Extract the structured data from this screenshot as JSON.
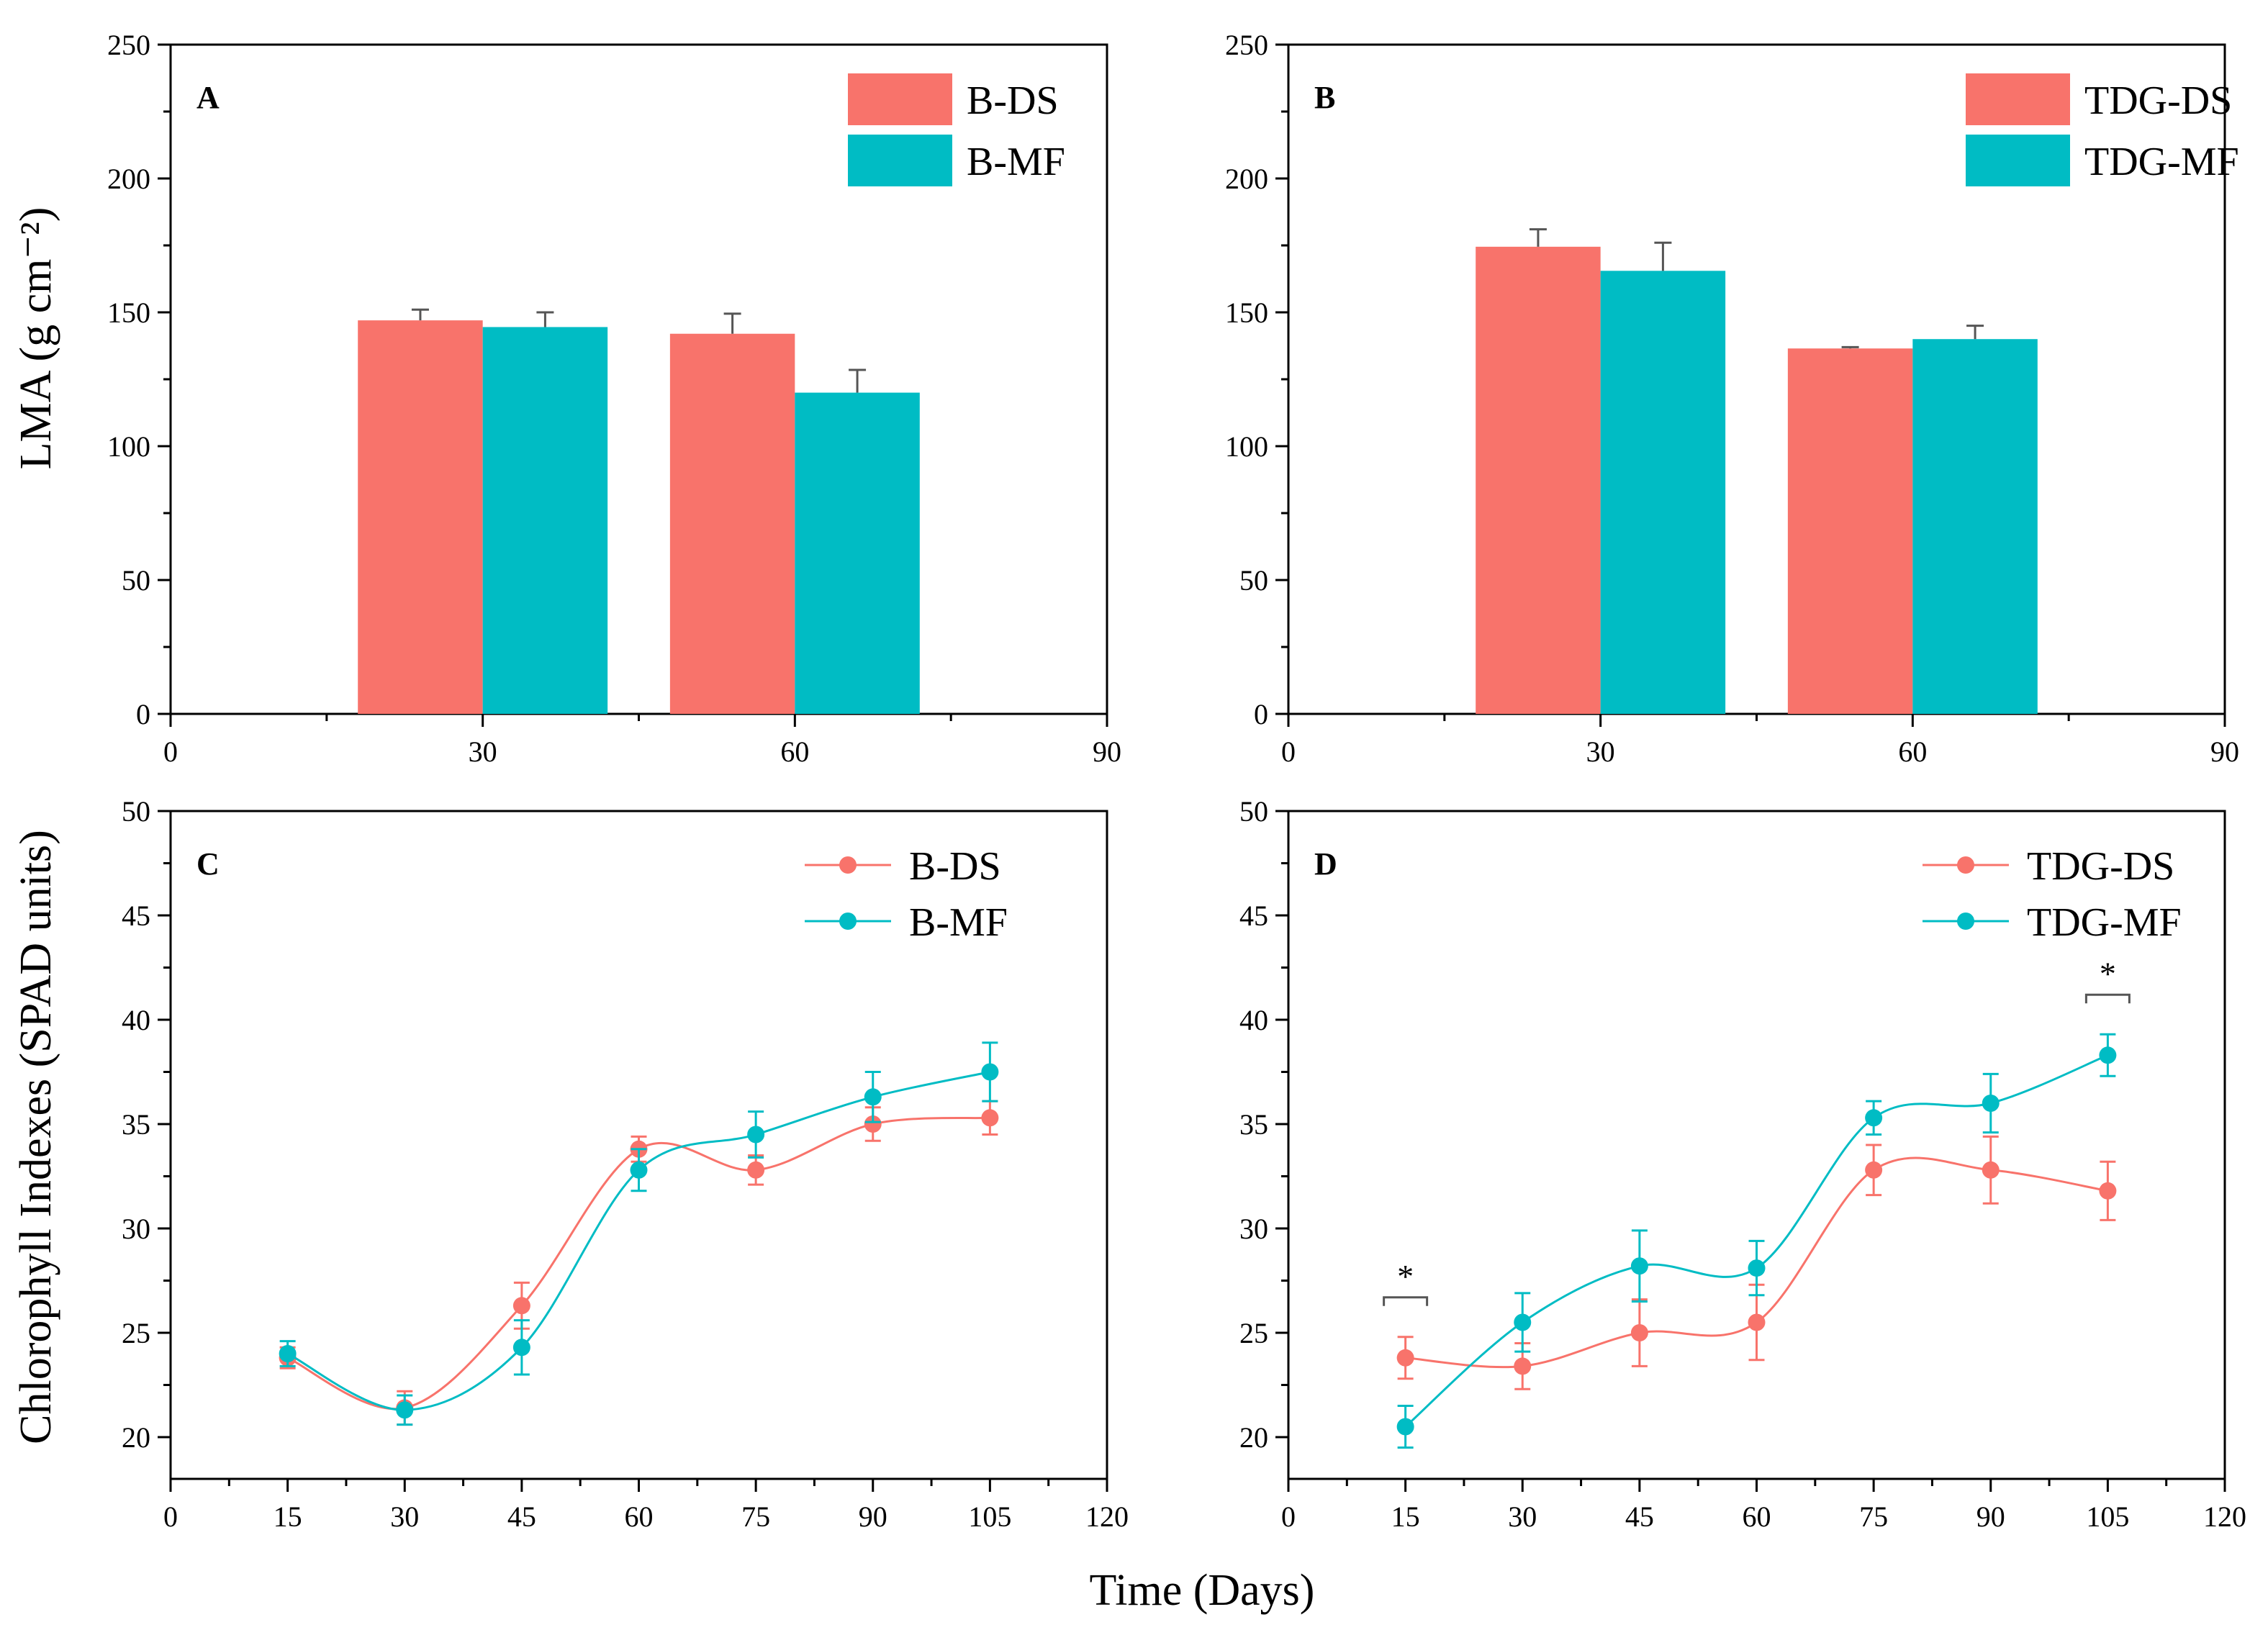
{
  "chart_data": [
    {
      "id": "A",
      "type": "bar",
      "panel_label": "A",
      "ylabel": "LMA (g cm⁻²)",
      "xlim": [
        0,
        90
      ],
      "ylim": [
        0,
        250
      ],
      "xticks": [
        0,
        30,
        60,
        90
      ],
      "yticks": [
        0,
        50,
        100,
        150,
        200,
        250
      ],
      "categories": [
        30,
        60
      ],
      "series": [
        {
          "name": "B-DS",
          "color": "#F8736B",
          "values": [
            147,
            142
          ],
          "errors": [
            4,
            7.5
          ]
        },
        {
          "name": "B-MF",
          "color": "#00BCC4",
          "values": [
            144.5,
            120
          ],
          "errors": [
            5.5,
            8.5
          ]
        }
      ],
      "legend_position": "top-right"
    },
    {
      "id": "B",
      "type": "bar",
      "panel_label": "B",
      "xlim": [
        0,
        90
      ],
      "ylim": [
        0,
        250
      ],
      "xticks": [
        0,
        30,
        60,
        90
      ],
      "yticks": [
        0,
        50,
        100,
        150,
        200,
        250
      ],
      "categories": [
        30,
        60
      ],
      "series": [
        {
          "name": "TDG-DS",
          "color": "#F8736B",
          "values": [
            174.5,
            136.5
          ],
          "errors": [
            6.5,
            0.5
          ]
        },
        {
          "name": "TDG-MF",
          "color": "#00BCC4",
          "values": [
            165.5,
            140
          ],
          "errors": [
            10.5,
            5
          ]
        }
      ],
      "legend_position": "top-right"
    },
    {
      "id": "C",
      "type": "line",
      "panel_label": "C",
      "ylabel": "Chlorophyll Indexes (SPAD units)",
      "xlim": [
        0,
        120
      ],
      "ylim": [
        18,
        50
      ],
      "xticks": [
        0,
        15,
        30,
        45,
        60,
        75,
        90,
        105,
        120
      ],
      "yticks": [
        20,
        25,
        30,
        35,
        40,
        45,
        50
      ],
      "x": [
        15,
        30,
        45,
        60,
        75,
        90,
        105
      ],
      "series": [
        {
          "name": "B-DS",
          "color": "#F8736B",
          "values": [
            23.8,
            21.4,
            26.3,
            33.8,
            32.8,
            35.0,
            35.3
          ],
          "errors": [
            0.5,
            0.8,
            1.1,
            0.6,
            0.7,
            0.8,
            0.8
          ]
        },
        {
          "name": "B-MF",
          "color": "#00BCC4",
          "values": [
            24.0,
            21.3,
            24.3,
            32.8,
            34.5,
            36.3,
            37.5
          ],
          "errors": [
            0.6,
            0.7,
            1.3,
            1.0,
            1.1,
            1.2,
            1.4
          ]
        }
      ],
      "legend_position": "top-right"
    },
    {
      "id": "D",
      "type": "line",
      "panel_label": "D",
      "xlim": [
        0,
        120
      ],
      "ylim": [
        18,
        50
      ],
      "xticks": [
        0,
        15,
        30,
        45,
        60,
        75,
        90,
        105,
        120
      ],
      "yticks": [
        20,
        25,
        30,
        35,
        40,
        45,
        50
      ],
      "x": [
        15,
        30,
        45,
        60,
        75,
        90,
        105
      ],
      "series": [
        {
          "name": "TDG-DS",
          "color": "#F8736B",
          "values": [
            23.8,
            23.4,
            25.0,
            25.5,
            32.8,
            32.8,
            31.8
          ],
          "errors": [
            1.0,
            1.1,
            1.6,
            1.8,
            1.2,
            1.6,
            1.4
          ]
        },
        {
          "name": "TDG-MF",
          "color": "#00BCC4",
          "values": [
            20.5,
            25.5,
            28.2,
            28.1,
            35.3,
            36.0,
            38.3
          ],
          "errors": [
            1.0,
            1.4,
            1.7,
            1.3,
            0.8,
            1.4,
            1.0
          ]
        }
      ],
      "significance": [
        {
          "x": 15,
          "label": "*"
        },
        {
          "x": 105,
          "label": "*"
        }
      ],
      "legend_position": "top-right"
    }
  ],
  "figure": {
    "xlabel": "Time (Days)"
  }
}
